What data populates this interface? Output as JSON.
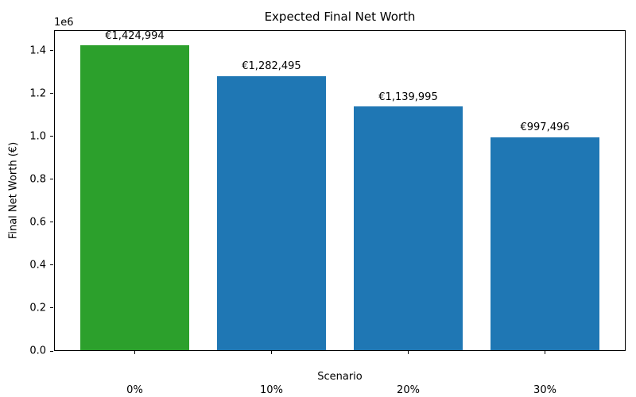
{
  "chart_data": {
    "type": "bar",
    "title": "Expected Final Net Worth",
    "xlabel": "Scenario",
    "ylabel": "Final Net Worth (€)",
    "y_offset_text": "1e6",
    "categories": [
      "0%",
      "10%",
      "20%",
      "30%"
    ],
    "values": [
      1424994,
      1282495,
      1139995,
      997496
    ],
    "bar_labels": [
      "€1,424,994",
      "€1,282,495",
      "€1,139,995",
      "€997,496"
    ],
    "bar_colors": [
      "#2ca02c",
      "#1f77b4",
      "#1f77b4",
      "#1f77b4"
    ],
    "ylim": [
      0,
      1496244
    ],
    "xlim": [
      -0.59,
      3.59
    ],
    "bar_width_units": 0.8,
    "yticks": [
      0,
      200000,
      400000,
      600000,
      800000,
      1000000,
      1200000,
      1400000
    ],
    "ytick_labels": [
      "0.0",
      "0.2",
      "0.4",
      "0.6",
      "0.8",
      "1.0",
      "1.2",
      "1.4"
    ],
    "grid": false,
    "legend": "none"
  }
}
